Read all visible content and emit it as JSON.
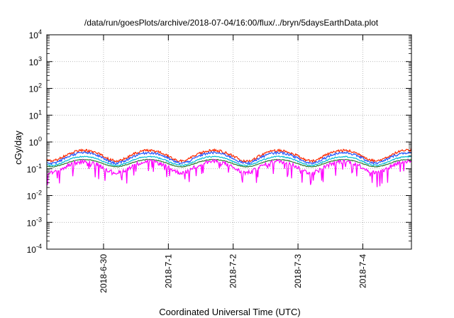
{
  "chart_data": {
    "type": "line",
    "title": "/data/run/goesPlots/archive/2018-07-04/16:00/flux/../bryn/5daysEarthData.plot",
    "xlabel": "Coordinated Universal Time (UTC)",
    "ylabel": "cGy/day",
    "y_scale": "log",
    "ylim": [
      0.0001,
      10000
    ],
    "y_ticks": [
      {
        "value": 0.0001,
        "base": "10",
        "exp": "-4"
      },
      {
        "value": 0.001,
        "base": "10",
        "exp": "-3"
      },
      {
        "value": 0.01,
        "base": "10",
        "exp": "-2"
      },
      {
        "value": 0.1,
        "base": "10",
        "exp": "-1"
      },
      {
        "value": 1,
        "base": "10",
        "exp": "0"
      },
      {
        "value": 10,
        "base": "10",
        "exp": "1"
      },
      {
        "value": 100,
        "base": "10",
        "exp": "2"
      },
      {
        "value": 1000,
        "base": "10",
        "exp": "3"
      },
      {
        "value": 10000,
        "base": "10",
        "exp": "4"
      }
    ],
    "xlim": [
      "2018-06-29 03:00",
      "2018-07-04 18:00"
    ],
    "x_ticks": [
      "2018-6-30",
      "2018-7-1",
      "2018-7-2",
      "2018-7-3",
      "2018-7-4"
    ],
    "grid": true,
    "legend": "none",
    "series": [
      {
        "color": "#ff2a00",
        "base": 0.34,
        "amplitude": 0.42,
        "noise": 0.22
      },
      {
        "color": "#2255ff",
        "base": 0.28,
        "amplitude": 0.42,
        "noise": 0.2
      },
      {
        "color": "#00bcd4",
        "base": 0.21,
        "amplitude": 0.36,
        "noise": 0.1
      },
      {
        "color": "#2e7d32",
        "base": 0.17,
        "amplitude": 0.3,
        "noise": 0.06
      },
      {
        "color": "#ff00ff",
        "base": 0.13,
        "amplitude": 0.45,
        "noise": 0.35,
        "dips": true
      }
    ]
  }
}
